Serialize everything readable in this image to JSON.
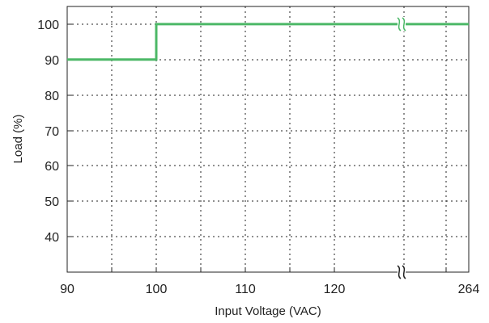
{
  "chart_data": {
    "type": "line",
    "title": "",
    "xlabel": "Input Voltage (VAC)",
    "ylabel": "Load (%)",
    "x_ticks": [
      "90",
      "100",
      "110",
      "120",
      "264"
    ],
    "y_ticks": [
      "40",
      "50",
      "60",
      "70",
      "80",
      "90",
      "100"
    ],
    "ylim": [
      30,
      105
    ],
    "x_axis_break": "between 120 and 264",
    "grid": true,
    "legend": "none",
    "series": [
      {
        "color": "#4cb867",
        "points": [
          [
            90,
            90
          ],
          [
            100,
            90
          ],
          [
            100,
            100
          ],
          [
            264,
            100
          ]
        ]
      }
    ]
  }
}
